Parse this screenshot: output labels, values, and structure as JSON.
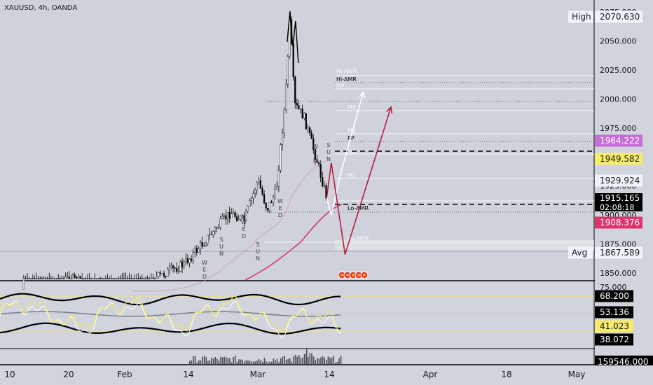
{
  "symbol_label": "XAUUSD, 4h, OANDA",
  "colors": {
    "background": "#d1d4dc",
    "up_candle": "#ffffff",
    "down_candle": "#000000",
    "ma_line": "#d33c6b",
    "white_projection": "#ffffff",
    "red_projection": "#b71c3c",
    "rsi_line": "#f5e663",
    "rsi_signal": "#ffffff",
    "band": "#000000",
    "band_mid": "#7a7e87"
  },
  "price_axis": {
    "ticks": [
      "2075.000",
      "2050.000",
      "2025.000",
      "2000.000",
      "1975.000",
      "1950.000",
      "1925.000",
      "1900.000",
      "1875.000",
      "1850.000"
    ],
    "ylim": [
      1848,
      2078
    ]
  },
  "price_tags": [
    {
      "prefix": "High",
      "value": "2070.630",
      "style": "light"
    },
    {
      "value": "1964.222",
      "style": "purple"
    },
    {
      "value": "1949.582",
      "style": "yellow"
    },
    {
      "value": "1929.924",
      "style": "light"
    },
    {
      "value": "1915.165",
      "sub": "02:08:18",
      "style": "dark"
    },
    {
      "value": "1908.376",
      "style": "pink"
    },
    {
      "prefix": "Avg",
      "value": "1867.589",
      "style": "light"
    }
  ],
  "pivot_labels": [
    "Hi-AWR",
    "Hi-AMR",
    "M5",
    "M4",
    "M3",
    "PP",
    "M2",
    "M1",
    "Lo-AMR",
    "Lo-AWR"
  ],
  "day_labels": [
    "W",
    "E",
    "D",
    "S",
    "U",
    "N",
    "W",
    "E",
    "D",
    "S",
    "U",
    "N",
    "W",
    "E",
    "D",
    "W",
    "E",
    "D",
    "S",
    "U",
    "N"
  ],
  "rsi_axis": {
    "ticks": [
      "75.000"
    ],
    "tags": [
      {
        "value": "68.200",
        "style": "dark"
      },
      {
        "value": "53.136",
        "style": "dark"
      },
      {
        "value": "41.023",
        "style": "yellow"
      },
      {
        "value": "38.072",
        "style": "dark"
      }
    ]
  },
  "volume_tag": "159546.000",
  "time_axis": [
    "10",
    "20",
    "Feb",
    "14",
    "Mar",
    "14",
    "Apr",
    "18",
    "May"
  ],
  "chart_data": {
    "type": "candlestick",
    "symbol": "XAUUSD",
    "timeframe": "4h",
    "price_series": [
      {
        "date": "Jan 10",
        "close": 1836
      },
      {
        "date": "Jan 20",
        "close": 1845
      },
      {
        "date": "Feb 1",
        "close": 1832
      },
      {
        "date": "Feb 14",
        "close": 1858
      },
      {
        "date": "Feb 19",
        "close": 1880
      },
      {
        "date": "Feb 24",
        "close": 1902
      },
      {
        "date": "Feb 27",
        "close": 1895
      },
      {
        "date": "Mar 1",
        "close": 1930
      },
      {
        "date": "Mar 3",
        "close": 1905
      },
      {
        "date": "Mar 5",
        "close": 1920
      },
      {
        "date": "Mar 7",
        "close": 2000
      },
      {
        "date": "Mar 8",
        "close": 2069
      },
      {
        "date": "Mar 9",
        "close": 1995
      },
      {
        "date": "Mar 11",
        "close": 1985
      },
      {
        "date": "Mar 14",
        "close": 1945
      },
      {
        "date": "Mar 16",
        "close": 1915
      }
    ],
    "projections": [
      {
        "color": "white",
        "points": [
          [
            "Mar 16",
            1915
          ],
          [
            "Mar 17",
            1900
          ],
          [
            "Mar 19",
            1935
          ],
          [
            "Mar 24",
            2006
          ]
        ]
      },
      {
        "color": "red",
        "points": [
          [
            "Mar 16",
            1915
          ],
          [
            "Mar 17",
            1945
          ],
          [
            "Mar 20",
            1866
          ],
          [
            "Mar 30",
            1993
          ]
        ]
      }
    ],
    "ylim": [
      1848,
      2078
    ],
    "ylabel": "",
    "xlabel": ""
  }
}
